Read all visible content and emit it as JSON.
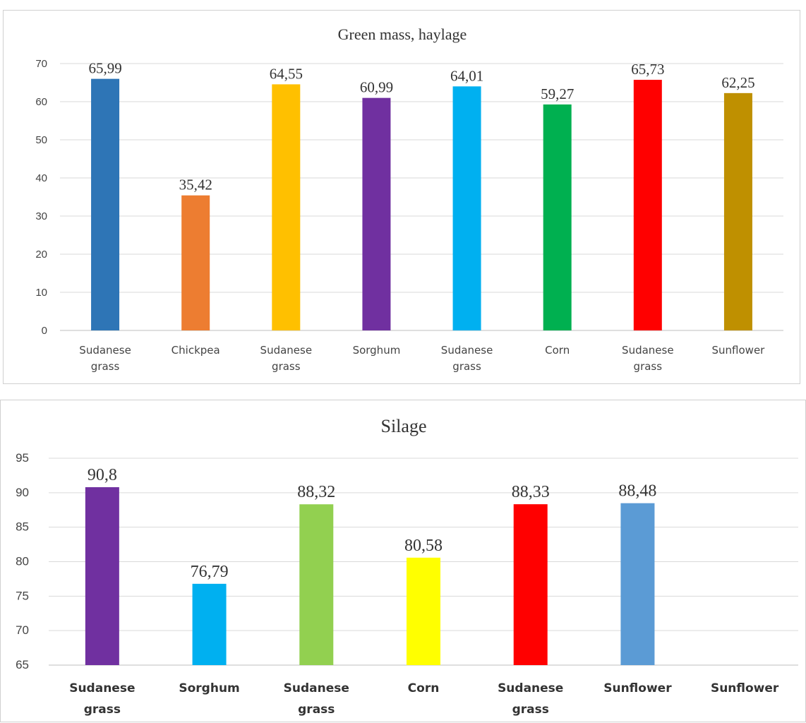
{
  "chart_data": [
    {
      "type": "bar",
      "title": "Green mass, haylage",
      "categories": [
        "Sudanese grass",
        "Chickpea",
        "Sudanese grass",
        "Sorghum",
        "Sudanese grass",
        "Corn",
        "Sudanese grass",
        "Sunflower"
      ],
      "values": [
        65.99,
        35.42,
        64.55,
        60.99,
        64.01,
        59.27,
        65.73,
        62.25
      ],
      "value_labels": [
        "65,99",
        "35,42",
        "64,55",
        "60,99",
        "64,01",
        "59,27",
        "65,73",
        "62,25"
      ],
      "colors": [
        "#2e75b6",
        "#ed7d31",
        "#ffc000",
        "#7030a0",
        "#00b0f0",
        "#00b050",
        "#ff0000",
        "#bf9000"
      ],
      "ylim": [
        0,
        70
      ],
      "yticks": [
        0,
        10,
        20,
        30,
        40,
        50,
        60,
        70
      ],
      "grid": true,
      "xlabel": "",
      "ylabel": ""
    },
    {
      "type": "bar",
      "title": "Silage",
      "categories": [
        "Sudanese grass",
        "Sorghum",
        "Sudanese grass",
        "Corn",
        "Sudanese grass",
        "Sunflower",
        "Sunflower"
      ],
      "values": [
        90.8,
        76.79,
        88.32,
        80.58,
        88.33,
        88.48,
        null
      ],
      "value_labels": [
        "90,8",
        "76,79",
        "88,32",
        "80,58",
        "88,33",
        "88,48",
        ""
      ],
      "colors": [
        "#7030a0",
        "#00b0f0",
        "#92d050",
        "#ffff00",
        "#ff0000",
        "#5b9bd5",
        "#ffffff"
      ],
      "ylim": [
        65,
        95
      ],
      "yticks": [
        65,
        70,
        75,
        80,
        85,
        90,
        95
      ],
      "grid": true,
      "xlabel": "",
      "ylabel": ""
    }
  ]
}
